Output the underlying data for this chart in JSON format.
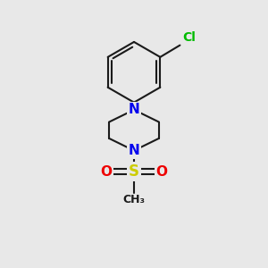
{
  "bg_color": "#e8e8e8",
  "bond_color": "#1a1a1a",
  "N_color": "#0000ee",
  "Cl_color": "#00bb00",
  "S_color": "#cccc00",
  "O_color": "#ee0000",
  "bond_width": 1.5,
  "fig_size": [
    3.0,
    3.0
  ],
  "dpi": 100,
  "xlim": [
    0,
    10
  ],
  "ylim": [
    0,
    10
  ]
}
